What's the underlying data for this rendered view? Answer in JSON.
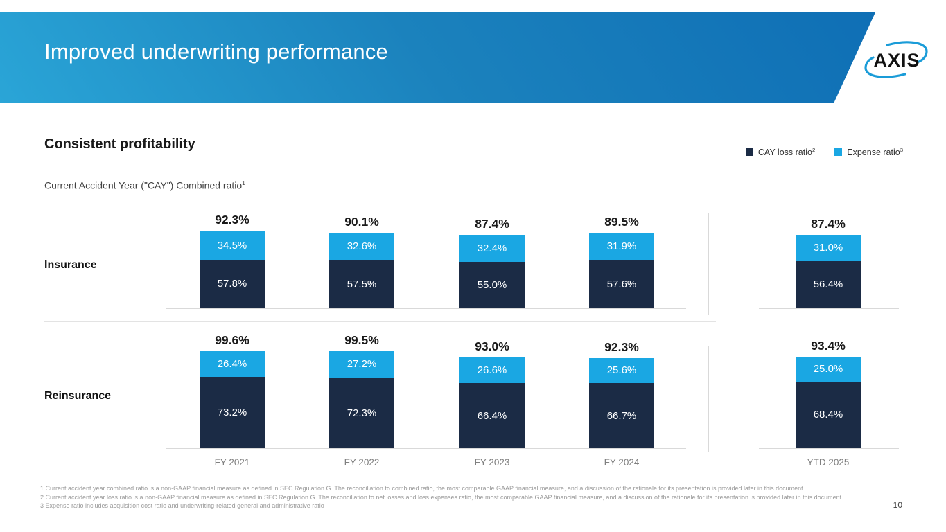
{
  "slide": {
    "title": "Improved underwriting performance",
    "logo_text": "AXIS",
    "page_number": "10"
  },
  "section": {
    "heading": "Consistent profitability",
    "subtitle": "Current Accident Year (\"CAY\") Combined ratio",
    "subtitle_superscript": "1"
  },
  "legend": {
    "items": [
      {
        "label": "CAY loss ratio",
        "superscript": "2",
        "color": "#1b2b45"
      },
      {
        "label": "Expense ratio",
        "superscript": "3",
        "color": "#1aa7e3"
      }
    ]
  },
  "chart_data": {
    "type": "bar",
    "stacked": true,
    "legend_position": "top-right",
    "grid": false,
    "categories": [
      "FY 2021",
      "FY 2022",
      "FY 2023",
      "FY 2024",
      "YTD 2025"
    ],
    "colors": {
      "loss": "#1b2b45",
      "expense": "#1aa7e3"
    },
    "groups": [
      {
        "name": "Insurance",
        "totals": [
          "92.3%",
          "90.1%",
          "87.4%",
          "89.5%",
          "87.4%"
        ],
        "series": [
          {
            "name": "CAY loss ratio",
            "values": [
              57.8,
              57.5,
              55.0,
              57.6,
              56.4
            ]
          },
          {
            "name": "Expense ratio",
            "values": [
              34.5,
              32.6,
              32.4,
              31.9,
              31.0
            ]
          }
        ]
      },
      {
        "name": "Reinsurance",
        "totals": [
          "99.6%",
          "99.5%",
          "93.0%",
          "92.3%",
          "93.4%"
        ],
        "series": [
          {
            "name": "CAY loss ratio",
            "values": [
              73.2,
              72.3,
              66.4,
              66.7,
              68.4
            ]
          },
          {
            "name": "Expense ratio",
            "values": [
              26.4,
              27.2,
              26.6,
              25.6,
              25.0
            ]
          }
        ]
      }
    ]
  },
  "footnotes": [
    "1 Current accident year combined ratio is a non-GAAP financial measure as defined in SEC Regulation G. The reconciliation to combined ratio, the most comparable GAAP financial measure, and a discussion of the rationale for its presentation is provided later in this document",
    "2 Current accident year loss ratio is a non-GAAP financial measure as defined in SEC Regulation G. The reconciliation to net losses and loss expenses ratio, the most comparable GAAP financial measure, and a discussion of the rationale for its presentation is provided later in this document",
    "3 Expense ratio includes acquisition cost ratio and underwriting-related general and administrative ratio"
  ]
}
